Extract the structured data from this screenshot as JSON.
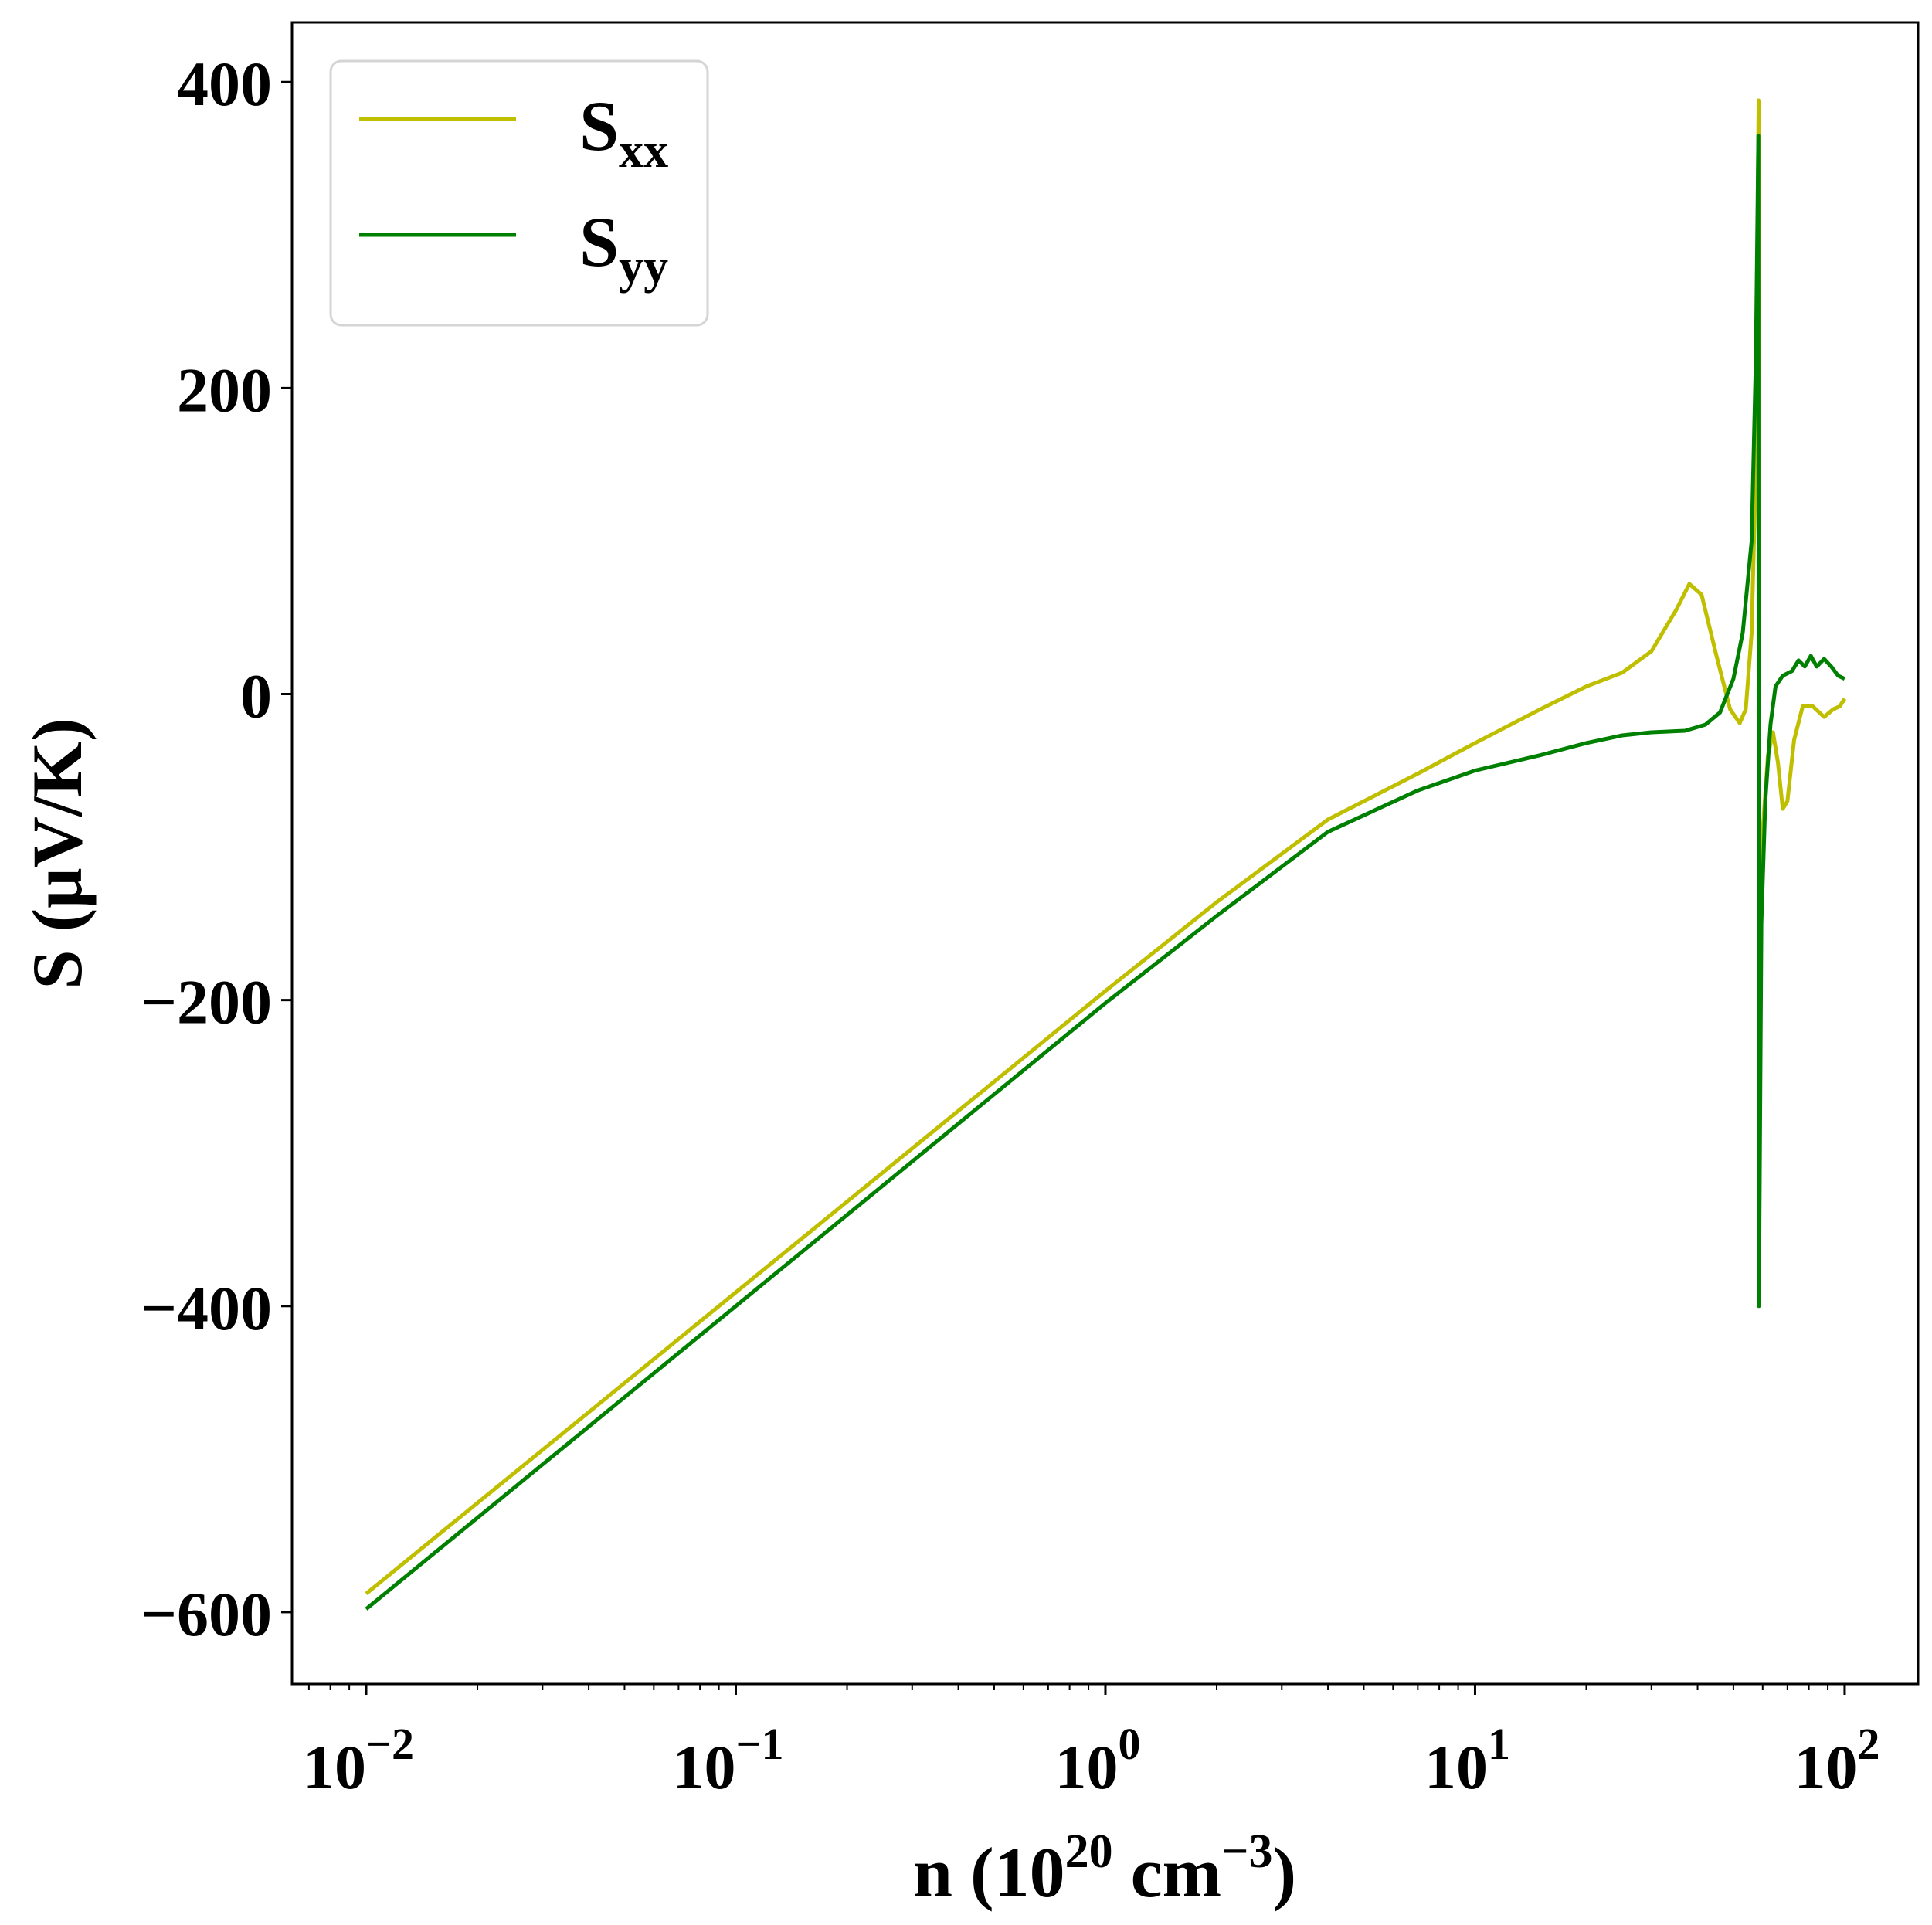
{
  "chart_data": {
    "type": "line",
    "title": "",
    "xlabel": "n (10",
    "xlabel_sup": "20",
    "xlabel_unit": " cm",
    "xlabel_unit_sup": "−3",
    "xlabel_close": ")",
    "ylabel": "S (μV/K)",
    "xscale": "log",
    "xlim": [
      0.0063,
      158
    ],
    "ylim": [
      -647,
      439
    ],
    "grid": false,
    "legend_placement": "top-left",
    "x_ticks": [
      {
        "value": 0.01,
        "base": "10",
        "exp": "−2"
      },
      {
        "value": 0.1,
        "base": "10",
        "exp": "−1"
      },
      {
        "value": 1,
        "base": "10",
        "exp": "0"
      },
      {
        "value": 10,
        "base": "10",
        "exp": "1"
      },
      {
        "value": 100,
        "base": "10",
        "exp": "2"
      }
    ],
    "y_ticks": [
      {
        "value": 400,
        "label": "400"
      },
      {
        "value": 200,
        "label": "200"
      },
      {
        "value": 0,
        "label": "0"
      },
      {
        "value": -200,
        "label": "−200"
      },
      {
        "value": -400,
        "label": "−400"
      },
      {
        "value": -600,
        "label": "−600"
      }
    ],
    "series": [
      {
        "name": "S",
        "name_sub": "xx",
        "color": "#bfbf00",
        "x": [
          0.01,
          0.1,
          1,
          2,
          4,
          7,
          10,
          15,
          20,
          25,
          30,
          35,
          38,
          41,
          45,
          49,
          52,
          54,
          56,
          57.5,
          58.5,
          58.7,
          60,
          62,
          64,
          66,
          68,
          70,
          73,
          77,
          82,
          88,
          93,
          97,
          100
        ],
        "y": [
          -588,
          -391,
          -194,
          -136,
          -82,
          -52,
          -32,
          -10,
          5,
          14,
          28,
          55,
          72,
          65,
          25,
          -10,
          -19,
          -10,
          40,
          150,
          388,
          -120,
          -90,
          -40,
          -25,
          -45,
          -75,
          -70,
          -30,
          -8,
          -8,
          -15,
          -10,
          -8,
          -3
        ]
      },
      {
        "name": "S",
        "name_sub": "yy",
        "color": "#008000",
        "x": [
          0.01,
          0.1,
          1,
          2,
          4,
          7,
          10,
          15,
          20,
          25,
          30,
          37,
          42,
          46,
          50,
          53,
          56,
          57.5,
          58.4,
          58.6,
          59.5,
          61,
          63,
          65,
          68,
          72,
          75,
          78,
          81,
          84,
          88,
          92,
          96,
          100
        ],
        "y": [
          -598,
          -400,
          -202,
          -145,
          -90,
          -63,
          -50,
          -40,
          -32,
          -27,
          -25,
          -24,
          -20,
          -12,
          10,
          40,
          100,
          220,
          365,
          -400,
          -150,
          -70,
          -20,
          5,
          12,
          15,
          22,
          18,
          25,
          18,
          23,
          18,
          12,
          10
        ]
      }
    ]
  }
}
